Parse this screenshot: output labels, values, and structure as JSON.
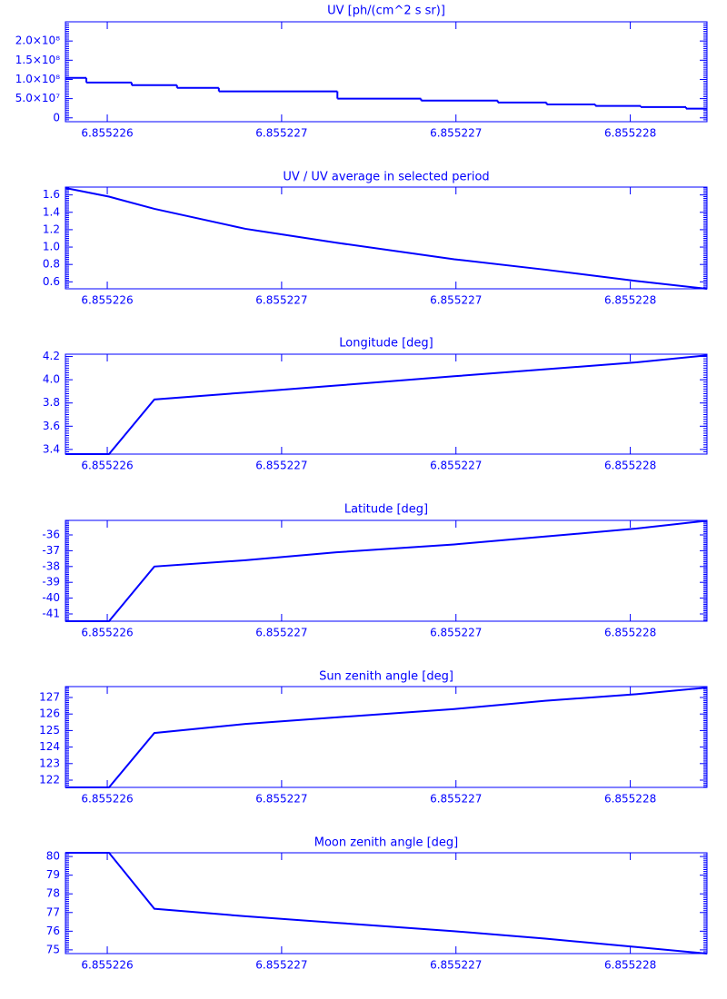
{
  "chart_data": [
    {
      "type": "step",
      "title": "UV [ph/(cm^2 s sr)]",
      "color": "#0000ff",
      "x": [
        6.85522588,
        6.85522594,
        6.85522607,
        6.8552262,
        6.85522632,
        6.85522666,
        6.8552269,
        6.85522712,
        6.85522726,
        6.8552274,
        6.85522753,
        6.85522766
      ],
      "values": [
        104000000,
        92000000,
        85000000,
        78000000,
        69000000,
        50000000,
        45000000,
        40000000,
        35000000,
        31000000,
        28000000,
        24000000
      ],
      "xlim": [
        6.85522588,
        6.85522772
      ],
      "xticks": [
        6.855226,
        {
          "value": 6.8552265,
          "label": "6.855227"
        },
        {
          "value": 6.855227,
          "label": "6.855227"
        },
        {
          "value": 6.8552275,
          "label": "6.855228"
        }
      ],
      "ylim": [
        -10000000,
        250000000
      ],
      "yticks": [
        0,
        {
          "value": 50000000,
          "label": "5.0×10⁷"
        },
        {
          "value": 100000000,
          "label": "1.0×10⁸"
        },
        {
          "value": 150000000,
          "label": "1.5×10⁸"
        },
        {
          "value": 200000000,
          "label": "2.0×10⁸"
        }
      ]
    },
    {
      "type": "line",
      "title": "UV / UV average in selected period",
      "color": "#0000ff",
      "x": [
        6.85522588,
        6.855226005,
        6.855226135,
        6.855226396,
        6.855226657,
        6.855226995,
        6.855227256,
        6.855227517,
        6.85522772
      ],
      "values": [
        1.68,
        1.58,
        1.44,
        1.21,
        1.05,
        0.86,
        0.74,
        0.61,
        0.52
      ],
      "xlim": [
        6.85522588,
        6.85522772
      ],
      "xticks": [
        6.855226,
        {
          "value": 6.8552265,
          "label": "6.855227"
        },
        {
          "value": 6.855227,
          "label": "6.855227"
        },
        {
          "value": 6.8552275,
          "label": "6.855228"
        }
      ],
      "ylim": [
        0.52,
        1.69
      ],
      "yticks": [
        {
          "value": 0.6,
          "label": "0.6"
        },
        {
          "value": 0.8,
          "label": "0.8"
        },
        {
          "value": 1,
          "label": "1.0"
        },
        {
          "value": 1.2,
          "label": "1.2"
        },
        {
          "value": 1.4,
          "label": "1.4"
        },
        {
          "value": 1.6,
          "label": "1.6"
        }
      ]
    },
    {
      "type": "line",
      "title": "Longitude [deg]",
      "color": "#0000ff",
      "x": [
        6.85522588,
        6.855226005,
        6.855226135,
        6.855226396,
        6.855226657,
        6.855226995,
        6.855227256,
        6.855227517,
        6.85522772
      ],
      "values": [
        3.36,
        3.36,
        3.83,
        3.89,
        3.95,
        4.03,
        4.09,
        4.15,
        4.21
      ],
      "xlim": [
        6.85522588,
        6.85522772
      ],
      "xticks": [
        6.855226,
        {
          "value": 6.8552265,
          "label": "6.855227"
        },
        {
          "value": 6.855227,
          "label": "6.855227"
        },
        {
          "value": 6.8552275,
          "label": "6.855228"
        }
      ],
      "ylim": [
        3.36,
        4.22
      ],
      "yticks": [
        3.4,
        3.6,
        3.8,
        {
          "value": 4,
          "label": "4.0"
        },
        4.2
      ]
    },
    {
      "type": "line",
      "title": "Latitude [deg]",
      "color": "#0000ff",
      "x": [
        6.85522588,
        6.855226005,
        6.855226135,
        6.855226396,
        6.855226657,
        6.855226995,
        6.855227256,
        6.855227517,
        6.85522772
      ],
      "values": [
        -41.46,
        -41.46,
        -38.0,
        -37.6,
        -37.1,
        -36.6,
        -36.1,
        -35.6,
        -35.1
      ],
      "xlim": [
        6.85522588,
        6.85522772
      ],
      "xticks": [
        6.855226,
        {
          "value": 6.8552265,
          "label": "6.855227"
        },
        {
          "value": 6.855227,
          "label": "6.855227"
        },
        {
          "value": 6.8552275,
          "label": "6.855228"
        }
      ],
      "ylim": [
        -41.46,
        -35.08
      ],
      "yticks": [
        -41,
        -40,
        -39,
        -38,
        -37,
        -36
      ]
    },
    {
      "type": "line",
      "title": "Sun zenith angle [deg]",
      "color": "#0000ff",
      "x": [
        6.85522588,
        6.855226005,
        6.855226135,
        6.855226396,
        6.855226657,
        6.855226995,
        6.855227256,
        6.855227517,
        6.85522772
      ],
      "values": [
        121.56,
        121.56,
        124.85,
        125.4,
        125.8,
        126.3,
        126.8,
        127.2,
        127.6
      ],
      "xlim": [
        6.85522588,
        6.85522772
      ],
      "xticks": [
        6.855226,
        {
          "value": 6.8552265,
          "label": "6.855227"
        },
        {
          "value": 6.855227,
          "label": "6.855227"
        },
        {
          "value": 6.8552275,
          "label": "6.855228"
        }
      ],
      "ylim": [
        121.56,
        127.66
      ],
      "yticks": [
        122,
        123,
        124,
        125,
        126,
        127
      ]
    },
    {
      "type": "line",
      "title": "Moon zenith angle [deg]",
      "color": "#0000ff",
      "x": [
        6.85522588,
        6.855226005,
        6.855226135,
        6.855226396,
        6.855226657,
        6.855226995,
        6.855227256,
        6.855227517,
        6.85522772
      ],
      "values": [
        80.2,
        80.2,
        77.2,
        76.8,
        76.45,
        76.0,
        75.6,
        75.15,
        74.8
      ],
      "xlim": [
        6.85522588,
        6.85522772
      ],
      "xticks": [
        6.855226,
        {
          "value": 6.8552265,
          "label": "6.855227"
        },
        {
          "value": 6.855227,
          "label": "6.855227"
        },
        {
          "value": 6.8552275,
          "label": "6.855228"
        }
      ],
      "ylim": [
        74.8,
        80.2
      ],
      "yticks": [
        75,
        76,
        77,
        78,
        79,
        80
      ]
    }
  ]
}
